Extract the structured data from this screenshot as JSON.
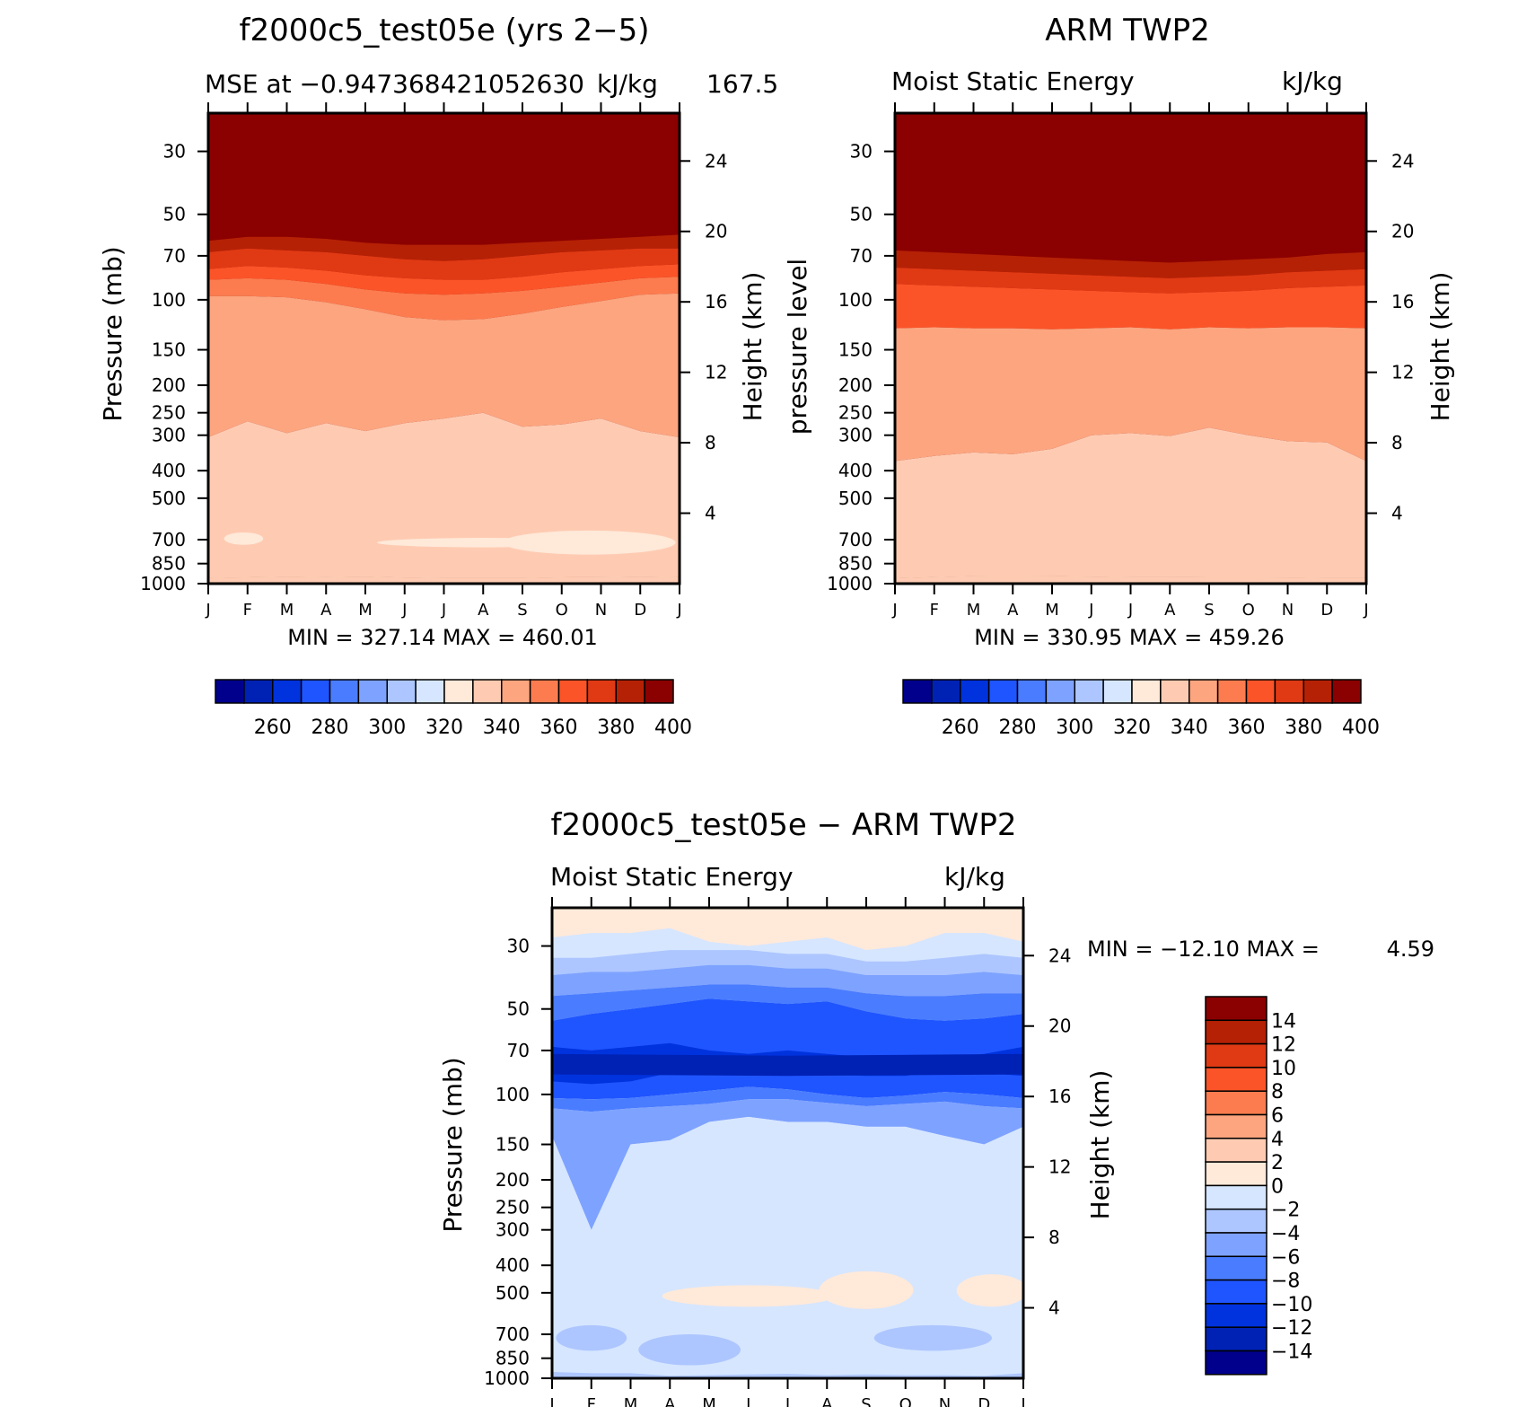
{
  "colors": {
    "abs_scale": [
      "#00008c",
      "#0022b4",
      "#0033dd",
      "#1f55ff",
      "#4a7cff",
      "#7ea2ff",
      "#adc6ff",
      "#d6e6ff",
      "#ffe9d9",
      "#fecbb2",
      "#fca57f",
      "#fc7c4f",
      "#fb5428",
      "#e03a14",
      "#b52105",
      "#8b0000"
    ],
    "diff_scale": [
      "#00008c",
      "#0022b4",
      "#0033dd",
      "#1f55ff",
      "#4a7cff",
      "#7ea2ff",
      "#adc6ff",
      "#d6e6ff",
      "#ffe9d9",
      "#fecbb2",
      "#fca57f",
      "#fc7c4f",
      "#fb5428",
      "#e03a14",
      "#b52105",
      "#8b0000"
    ]
  },
  "chart_data": [
    {
      "id": "model",
      "type": "heatmap",
      "title": "f2000c5_test05e (yrs 2−5)",
      "subtitle_left": "MSE at −0.947368421052630",
      "subtitle_right": "kJ/kg",
      "subtitle_extra": "167.5",
      "ylabel": "Pressure (mb)",
      "ylabel2": "Height (km)",
      "x_ticks": [
        "J",
        "F",
        "M",
        "A",
        "M",
        "J",
        "J",
        "A",
        "S",
        "O",
        "N",
        "D",
        "J"
      ],
      "y_ticks": [
        "30",
        "50",
        "70",
        "100",
        "150",
        "200",
        "250",
        "300",
        "400",
        "500",
        "700",
        "850",
        "1000"
      ],
      "y_ticks_values": [
        30,
        50,
        70,
        100,
        150,
        200,
        250,
        300,
        400,
        500,
        700,
        850,
        1000
      ],
      "ylim": [
        1000,
        22
      ],
      "height_ticks": [
        "4",
        "8",
        "12",
        "16",
        "20",
        "24"
      ],
      "height_values": [
        4,
        8,
        12,
        16,
        20,
        24
      ],
      "stats": "MIN = 327.14 MAX = 460.01",
      "min": 327.14,
      "max": 460.01,
      "levels": [
        260,
        280,
        300,
        320,
        340,
        360,
        380,
        400
      ],
      "level_boundaries": [
        250,
        260,
        270,
        280,
        290,
        300,
        310,
        320,
        330,
        340,
        350,
        360,
        370,
        380,
        390,
        400
      ],
      "colorbar_labels": [
        "260",
        "280",
        "300",
        "320",
        "340",
        "360",
        "380",
        "400"
      ],
      "months": [
        "J",
        "F",
        "M",
        "A",
        "M",
        "J",
        "J",
        "A",
        "S",
        "O",
        "N",
        "D",
        "J"
      ],
      "contours": [
        {
          "level": 400,
          "p": [
            55,
            54,
            54,
            55,
            56,
            57,
            57,
            57,
            56,
            55,
            54,
            53,
            52
          ]
        },
        {
          "level": 390,
          "p": [
            62,
            60,
            60,
            61,
            63,
            64,
            64,
            64,
            63,
            62,
            61,
            60,
            59
          ]
        },
        {
          "level": 380,
          "p": [
            68,
            66,
            67,
            68,
            70,
            72,
            73,
            72,
            70,
            68,
            67,
            66,
            66
          ]
        },
        {
          "level": 370,
          "p": [
            78,
            76,
            77,
            79,
            82,
            84,
            85,
            85,
            83,
            80,
            78,
            76,
            75
          ]
        },
        {
          "level": 360,
          "p": [
            85,
            84,
            85,
            88,
            92,
            95,
            96,
            95,
            93,
            90,
            87,
            84,
            83
          ]
        },
        {
          "level": 350,
          "p": [
            97,
            97,
            98,
            102,
            108,
            115,
            118,
            117,
            112,
            106,
            101,
            96,
            95
          ]
        },
        {
          "level": 340,
          "p": [
            305,
            268,
            295,
            272,
            290,
            272,
            262,
            250,
            280,
            275,
            262,
            290,
            305
          ]
        },
        {
          "level": 330,
          "p": [
            955,
            950,
            945,
            948,
            945,
            952,
            955,
            955,
            955,
            950,
            948,
            945,
            948
          ]
        }
      ],
      "blobs": [
        {
          "cx": 0.9,
          "cy": 700,
          "rx": 0.5,
          "p0": 660,
          "p1": 730
        },
        {
          "cx": 7.0,
          "cy": 720,
          "rx": 2.7,
          "p0": 690,
          "p1": 745
        },
        {
          "cx": 9.7,
          "cy": 715,
          "rx": 2.2,
          "p0": 650,
          "p1": 790
        }
      ]
    },
    {
      "id": "obs",
      "type": "heatmap",
      "title": "ARM TWP2",
      "subtitle_left": "Moist Static Energy",
      "subtitle_right": "kJ/kg",
      "ylabel": "pressure level",
      "ylabel2": "Height (km)",
      "x_ticks": [
        "J",
        "F",
        "M",
        "A",
        "M",
        "J",
        "J",
        "A",
        "S",
        "O",
        "N",
        "D",
        "J"
      ],
      "y_ticks": [
        "30",
        "50",
        "70",
        "100",
        "150",
        "200",
        "250",
        "300",
        "400",
        "500",
        "700",
        "850",
        "1000"
      ],
      "y_ticks_values": [
        30,
        50,
        70,
        100,
        150,
        200,
        250,
        300,
        400,
        500,
        700,
        850,
        1000
      ],
      "ylim": [
        1000,
        22
      ],
      "height_ticks": [
        "4",
        "8",
        "12",
        "16",
        "20",
        "24"
      ],
      "height_values": [
        4,
        8,
        12,
        16,
        20,
        24
      ],
      "stats": "MIN = 330.95 MAX = 459.26",
      "min": 330.95,
      "max": 459.26,
      "colorbar_labels": [
        "260",
        "280",
        "300",
        "320",
        "340",
        "360",
        "380",
        "400"
      ],
      "contours": [
        {
          "level": 400,
          "p": [
            59,
            59,
            60,
            61,
            62,
            63,
            64,
            65,
            64,
            63,
            62,
            61,
            60
          ]
        },
        {
          "level": 390,
          "p": [
            67,
            68,
            69,
            70,
            71,
            72,
            73,
            74,
            73,
            72,
            71,
            69,
            68
          ]
        },
        {
          "level": 380,
          "p": [
            77,
            78,
            79,
            80,
            81,
            82,
            83,
            84,
            83,
            82,
            80,
            79,
            78
          ]
        },
        {
          "level": 370,
          "p": [
            88,
            89,
            90,
            91,
            92,
            93,
            94,
            95,
            94,
            93,
            91,
            90,
            89
          ]
        },
        {
          "level": 350,
          "p": [
            126,
            125,
            126,
            126,
            127,
            126,
            125,
            127,
            125,
            126,
            125,
            125,
            126
          ]
        },
        {
          "level": 340,
          "p": [
            370,
            355,
            345,
            350,
            335,
            300,
            295,
            302,
            282,
            300,
            315,
            318,
            370
          ]
        },
        {
          "level": 330,
          "p": [
            958,
            948,
            942,
            940,
            942,
            945,
            948,
            948,
            950,
            950,
            952,
            955,
            955
          ]
        }
      ]
    },
    {
      "id": "diff",
      "type": "heatmap",
      "title": "f2000c5_test05e − ARM TWP2",
      "subtitle_left": "Moist Static Energy",
      "subtitle_right": "kJ/kg",
      "ylabel": "Pressure (mb)",
      "ylabel2": "Height (km)",
      "x_ticks": [
        "J",
        "F",
        "M",
        "A",
        "M",
        "J",
        "J",
        "A",
        "S",
        "O",
        "N",
        "D",
        "J"
      ],
      "y_ticks": [
        "30",
        "50",
        "70",
        "100",
        "150",
        "200",
        "250",
        "300",
        "400",
        "500",
        "700",
        "850",
        "1000"
      ],
      "y_ticks_values": [
        30,
        50,
        70,
        100,
        150,
        200,
        250,
        300,
        400,
        500,
        700,
        850,
        1000
      ],
      "ylim": [
        1000,
        22
      ],
      "height_ticks": [
        "4",
        "8",
        "12",
        "16",
        "20",
        "24"
      ],
      "height_values": [
        4,
        8,
        12,
        16,
        20,
        24
      ],
      "stats_label": "MIN = −12.10 MAX =",
      "stats_value": "4.59",
      "min": -12.1,
      "max": 4.59,
      "colorbar_labels": [
        "14",
        "12",
        "10",
        "8",
        "6",
        "4",
        "2",
        "0",
        "−2",
        "−4",
        "−6",
        "−8",
        "−10",
        "−12",
        "−14"
      ],
      "colorbar_values": [
        14,
        12,
        10,
        8,
        6,
        4,
        2,
        0,
        -2,
        -4,
        -6,
        -8,
        -10,
        -12,
        -14
      ],
      "bands_top_down": [
        {
          "value": 1,
          "p_top": 22,
          "p_bot": [
            28,
            27,
            27,
            26,
            29,
            30,
            29,
            28,
            31,
            30,
            27,
            27,
            29
          ]
        },
        {
          "value": -1,
          "p_top": [
            28,
            27,
            27,
            26,
            29,
            30,
            29,
            28,
            31,
            30,
            27,
            27,
            29
          ],
          "p_bot": [
            33,
            33,
            32,
            31,
            31,
            31,
            32,
            32,
            34,
            34,
            33,
            32,
            33
          ]
        },
        {
          "value": -3,
          "p_top": [
            33,
            33,
            32,
            31,
            31,
            31,
            32,
            32,
            34,
            34,
            33,
            32,
            33
          ],
          "p_bot": [
            38,
            37,
            37,
            36,
            35,
            35,
            36,
            36,
            38,
            38,
            38,
            37,
            38
          ]
        },
        {
          "value": -5,
          "p_top": [
            38,
            37,
            37,
            36,
            35,
            35,
            36,
            36,
            38,
            38,
            38,
            37,
            38
          ],
          "p_bot": [
            45,
            44,
            43,
            42,
            41,
            41,
            42,
            42,
            44,
            45,
            45,
            44,
            44
          ]
        },
        {
          "value": -7,
          "p_top": [
            45,
            44,
            43,
            42,
            41,
            41,
            42,
            42,
            44,
            45,
            45,
            44,
            44
          ],
          "p_bot": [
            55,
            52,
            50,
            48,
            46,
            47,
            48,
            47,
            51,
            54,
            55,
            54,
            52
          ]
        },
        {
          "value": -9,
          "p_top": [
            55,
            52,
            50,
            48,
            46,
            47,
            48,
            47,
            51,
            54,
            55,
            54,
            52
          ],
          "p_bot": [
            103,
            104,
            103,
            100,
            97,
            94,
            96,
            100,
            103,
            101,
            98,
            100,
            103
          ]
        },
        {
          "value": -7,
          "p_top": [
            103,
            104,
            103,
            100,
            97,
            94,
            96,
            100,
            103,
            101,
            98,
            100,
            103
          ],
          "p_bot": [
            112,
            115,
            112,
            110,
            108,
            104,
            104,
            107,
            110,
            108,
            106,
            110,
            112
          ]
        },
        {
          "value": -5,
          "p_top": [
            112,
            115,
            112,
            110,
            108,
            104,
            104,
            107,
            110,
            108,
            106,
            110,
            112
          ],
          "p_bot": [
            140,
            300,
            150,
            145,
            125,
            120,
            125,
            125,
            130,
            130,
            140,
            150,
            130
          ]
        },
        {
          "value": -1,
          "p_top": [
            140,
            300,
            150,
            145,
            125,
            120,
            125,
            125,
            130,
            130,
            140,
            150,
            130
          ],
          "p_bot": [
            950,
            960,
            960,
            980,
            975,
            970,
            965,
            975,
            970,
            975,
            975,
            980,
            960
          ]
        },
        {
          "value": -3,
          "p_top": [
            950,
            960,
            960,
            980,
            975,
            970,
            965,
            975,
            970,
            975,
            975,
            980,
            960
          ],
          "p_bot": 1000
        }
      ],
      "dark_core": [
        {
          "value": -11,
          "p_top": [
            68,
            70,
            68,
            66,
            70,
            72,
            70,
            72,
            74,
            78,
            75,
            72,
            68
          ],
          "p_bot": [
            90,
            92,
            90,
            84,
            82,
            80,
            82,
            85,
            86,
            86,
            82,
            84,
            86
          ]
        },
        {
          "value": -13,
          "p_top": [
            72,
            73,
            72
          ],
          "p_bot": [
            85,
            86,
            85
          ]
        }
      ],
      "pos_blobs_mid": [
        {
          "cx": 5.0,
          "cy": 520,
          "p0": 470,
          "p1": 560,
          "rx": 2.2
        },
        {
          "cx": 8.0,
          "cy": 520,
          "p0": 420,
          "p1": 570,
          "rx": 1.2
        },
        {
          "cx": 11.2,
          "cy": 520,
          "p0": 430,
          "p1": 560,
          "rx": 0.9
        }
      ],
      "neg_blobs_low": [
        {
          "cx": 1.0,
          "cy": 720,
          "p0": 650,
          "p1": 800,
          "rx": 0.9
        },
        {
          "cx": 9.7,
          "cy": 720,
          "p0": 650,
          "p1": 800,
          "rx": 1.5
        },
        {
          "cx": 3.5,
          "cy": 780,
          "p0": 700,
          "p1": 900,
          "rx": 1.3
        }
      ]
    }
  ]
}
